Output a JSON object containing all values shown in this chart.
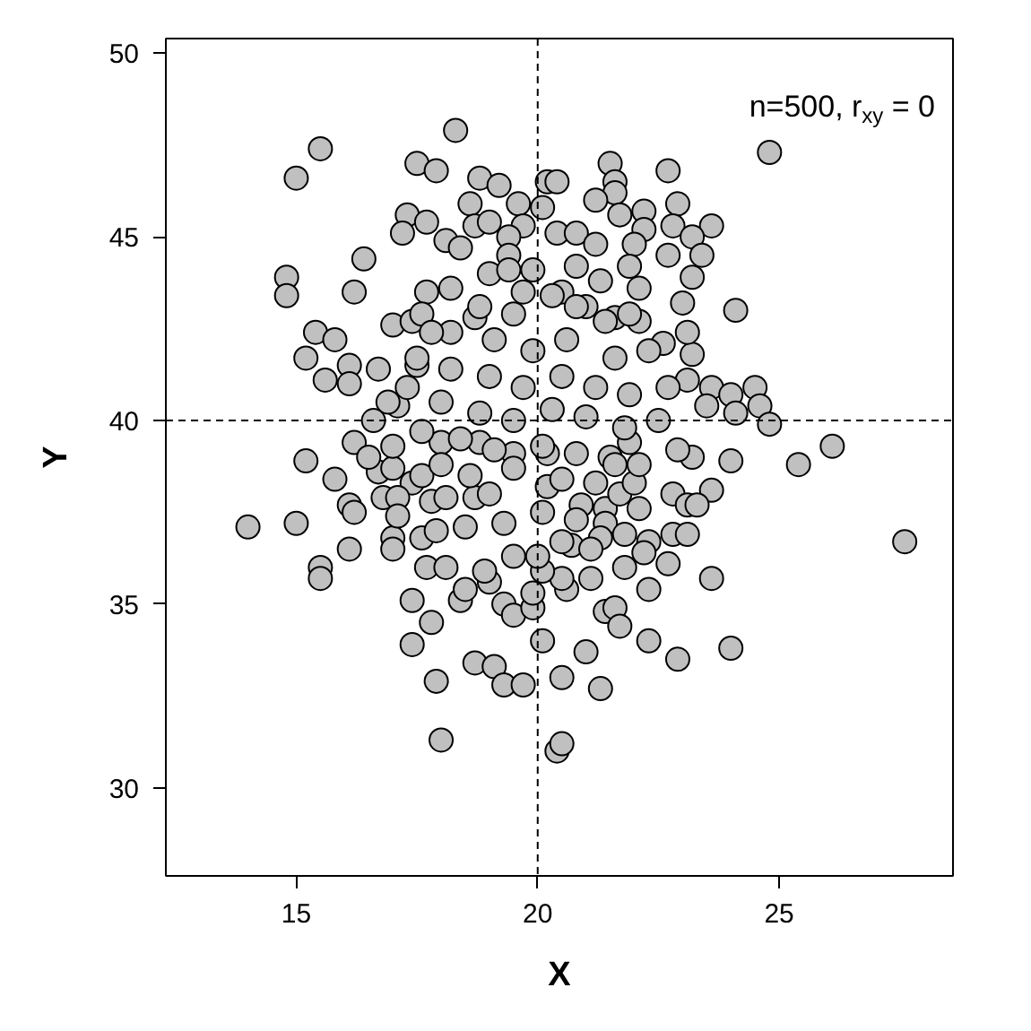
{
  "chart_data": {
    "type": "scatter",
    "xlabel": "X",
    "ylabel": "Y",
    "annotations": [
      "n=500, r$_{xy}$ = 0"
    ],
    "color": "#c0c0c0",
    "marker": "circle",
    "grid": false,
    "xlim": [
      12.3,
      28.6
    ],
    "ylim": [
      27.6,
      50.4
    ],
    "xticks": [
      15,
      20,
      25
    ],
    "yticks": [
      30,
      35,
      40,
      45,
      50
    ],
    "ref_lines": [
      {
        "axis": "x",
        "value": 20,
        "color": "#000000",
        "line_style": "dashed"
      },
      {
        "axis": "y",
        "value": 40,
        "color": "#000000",
        "line_style": "dashed"
      }
    ],
    "x": [
      18.3,
      15.5,
      15.0,
      17.5,
      17.9,
      18.8,
      19.2,
      20.2,
      18.6,
      19.6,
      17.3,
      17.7,
      17.2,
      18.7,
      19.0,
      19.7,
      18.1,
      18.4,
      19.4,
      16.4,
      14.8,
      14.8,
      16.2,
      19.4,
      19.0,
      19.4,
      19.9,
      17.7,
      18.2,
      19.7,
      15.4,
      15.8,
      15.2,
      15.6,
      16.1,
      16.1,
      16.7,
      17.0,
      17.4,
      17.6,
      18.2,
      18.7,
      17.1,
      16.9,
      17.5,
      16.6,
      16.2,
      24.8,
      21.5,
      22.7,
      20.4,
      21.6,
      21.6,
      21.2,
      22.9,
      20.1,
      21.7,
      22.2,
      23.6,
      20.4,
      20.8,
      21.2,
      22.2,
      22.8,
      23.2,
      22.0,
      23.4,
      22.7,
      21.9,
      20.8,
      21.3,
      22.1,
      23.2,
      23.0,
      24.1,
      20.5,
      21.0,
      21.6,
      22.1,
      22.6,
      23.2,
      23.1,
      23.6,
      24.0,
      24.5,
      23.5,
      24.1,
      24.6,
      24.8,
      26.1,
      14.0,
      15.0,
      15.2,
      15.8,
      16.1,
      15.5,
      15.5,
      16.1,
      16.2,
      17.0,
      17.0,
      17.6,
      17.9,
      18.5,
      17.7,
      18.1,
      17.4,
      17.8,
      17.4,
      17.9,
      18.0,
      18.7,
      19.1,
      19.3,
      19.7,
      18.4,
      18.5,
      19.0,
      18.9,
      19.3,
      19.5,
      19.9,
      20.1,
      16.7,
      17.0,
      17.4,
      17.6,
      16.8,
      17.1,
      17.1,
      17.8,
      18.1,
      18.7,
      19.0,
      19.3,
      19.5,
      16.5,
      17.0,
      18.0,
      18.8,
      19.5,
      20.4,
      20.5,
      27.6,
      25.4,
      24.0,
      23.2,
      23.6,
      22.8,
      23.1,
      23.3,
      22.8,
      23.1,
      22.3,
      22.2,
      21.8,
      22.7,
      23.6,
      22.3,
      21.4,
      21.6,
      21.7,
      21.0,
      20.5,
      21.3,
      22.3,
      22.9,
      24.0,
      21.1,
      20.6,
      20.5,
      20.1,
      19.9,
      21.9,
      21.5,
      20.2,
      20.2,
      20.9,
      21.4,
      22.1,
      21.7,
      22.0,
      20.8,
      21.4,
      21.8,
      21.3,
      20.7,
      21.1,
      20.1,
      20.0,
      20.5,
      18.8,
      19.5,
      20.3,
      20.8,
      21.4,
      21.9,
      19.1,
      19.9,
      20.6,
      21.6,
      22.3,
      18.2,
      19.0,
      19.7,
      20.5,
      21.2,
      21.9,
      22.7,
      18.0,
      18.8,
      19.5,
      20.3,
      21.0,
      21.8,
      22.5,
      18.4,
      19.1,
      20.1,
      20.8,
      21.6,
      18.6,
      19.5,
      20.5,
      21.2,
      17.8,
      17.5,
      23.1,
      22.9,
      22.1,
      18.0,
      17.6,
      17.3
    ],
    "values": [
      47.9,
      47.4,
      46.6,
      47.0,
      46.8,
      46.6,
      46.4,
      46.5,
      45.9,
      45.9,
      45.6,
      45.4,
      45.1,
      45.3,
      45.4,
      45.3,
      44.9,
      44.7,
      45.0,
      44.4,
      43.9,
      43.4,
      43.5,
      44.5,
      44.0,
      44.1,
      44.1,
      43.5,
      43.6,
      43.5,
      42.4,
      42.2,
      41.7,
      41.1,
      41.5,
      41.0,
      41.4,
      42.6,
      42.7,
      42.9,
      42.4,
      42.8,
      40.4,
      40.5,
      41.5,
      40.0,
      39.4,
      47.3,
      47.0,
      46.8,
      46.5,
      46.5,
      46.2,
      46.0,
      45.9,
      45.8,
      45.6,
      45.7,
      45.3,
      45.1,
      45.1,
      44.8,
      45.2,
      45.3,
      45.0,
      44.8,
      44.5,
      44.5,
      44.2,
      44.2,
      43.8,
      43.6,
      43.9,
      43.2,
      43.0,
      43.5,
      43.1,
      42.8,
      42.7,
      42.1,
      41.8,
      41.1,
      40.9,
      40.7,
      40.9,
      40.4,
      40.2,
      40.4,
      39.9,
      39.3,
      37.1,
      37.2,
      38.9,
      38.4,
      36.5,
      36.0,
      35.7,
      37.7,
      37.5,
      36.8,
      36.5,
      36.8,
      37.0,
      37.1,
      36.0,
      36.0,
      35.1,
      34.5,
      33.9,
      32.9,
      31.3,
      33.4,
      33.3,
      32.8,
      32.8,
      35.1,
      35.4,
      35.6,
      35.9,
      35.0,
      34.7,
      34.9,
      34.0,
      38.6,
      38.7,
      38.3,
      38.5,
      37.9,
      37.9,
      37.4,
      37.8,
      37.9,
      37.9,
      38.0,
      37.2,
      36.3,
      39.0,
      39.3,
      39.4,
      39.4,
      39.1,
      31.0,
      31.2,
      36.7,
      38.8,
      38.9,
      39.0,
      38.1,
      38.0,
      37.7,
      37.7,
      36.9,
      36.9,
      36.7,
      36.4,
      36.0,
      36.1,
      35.7,
      35.4,
      34.8,
      34.9,
      34.4,
      33.7,
      33.0,
      32.7,
      34.0,
      33.5,
      33.8,
      35.7,
      35.4,
      35.7,
      35.9,
      35.3,
      39.4,
      39.0,
      39.1,
      38.2,
      37.7,
      37.6,
      37.6,
      38.0,
      38.3,
      37.3,
      37.2,
      36.9,
      36.8,
      36.6,
      36.5,
      37.5,
      36.3,
      36.7,
      43.1,
      42.9,
      43.4,
      43.1,
      42.7,
      42.9,
      42.2,
      41.9,
      42.2,
      41.7,
      41.9,
      41.4,
      41.2,
      40.9,
      41.2,
      40.9,
      40.7,
      40.9,
      40.5,
      40.2,
      40.0,
      40.3,
      40.1,
      39.8,
      40.0,
      39.5,
      39.2,
      39.3,
      39.1,
      38.8,
      38.5,
      38.7,
      38.4,
      38.3,
      42.4,
      41.7,
      42.4,
      39.2,
      38.8,
      38.8,
      39.7,
      40.9
    ]
  }
}
